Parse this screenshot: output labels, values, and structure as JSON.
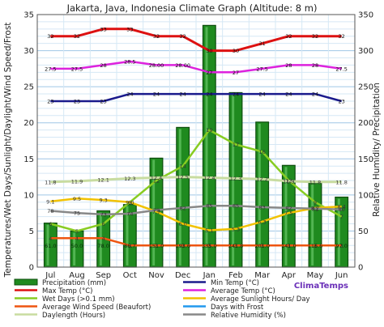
{
  "chart_data": {
    "type": "bar",
    "title": "Jakarta, Java, Indonesia Climate Graph (Altitude: 8 m)",
    "ylabel_left": "Temperatures/Wet Days/Sunlight/Daylight/Wind Speed/Frost",
    "ylabel_right": "Relative Humidity/ Precipitation",
    "categories": [
      "Jul",
      "Aug",
      "Sep",
      "Oct",
      "Nov",
      "Dec",
      "Jan",
      "Feb",
      "Mar",
      "Apr",
      "May",
      "Jun"
    ],
    "ylim_left": [
      0,
      35
    ],
    "ylim_right": [
      0,
      350
    ],
    "left_ticks": [
      "0",
      "5",
      "10",
      "15",
      "20",
      "25",
      "30",
      "35"
    ],
    "right_ticks": [
      "0",
      "50",
      "100",
      "150",
      "200",
      "250",
      "300",
      "350"
    ],
    "grid": true,
    "precipitation": {
      "name": "Precipitation (mm)",
      "color": "#1f8a1f",
      "values": [
        61.0,
        50.0,
        78.0,
        86.7,
        151.0,
        193.6,
        335.0,
        241.8,
        201.0,
        141.0,
        116.6,
        97.0
      ],
      "labels": [
        "61.0",
        "50.0",
        "78.0",
        "86.7",
        "151.0",
        "193.6",
        "335.0",
        "241.8",
        "201.0",
        "141.0",
        "116.6",
        "97.0"
      ]
    },
    "lines": [
      {
        "key": "max",
        "name": "Max Temp (°C)",
        "color": "#dd1111",
        "width": 3,
        "values": [
          32,
          32,
          33,
          33,
          32,
          32,
          30,
          30,
          31,
          32,
          32,
          32
        ],
        "labels": [
          "32",
          "32",
          "33",
          "33",
          "32",
          "32",
          "30",
          "30",
          "31",
          "32",
          "32",
          "32"
        ]
      },
      {
        "key": "avg",
        "name": "Average Temp (°C)",
        "color": "#dd22dd",
        "width": 2.5,
        "values": [
          27.5,
          27.5,
          28,
          28.5,
          28,
          28,
          27,
          27,
          27.5,
          28,
          28,
          27.5
        ],
        "labels": [
          "27.5",
          "27.5",
          "28",
          "28.5",
          "28.00",
          "28.00",
          "27",
          "27",
          "27.5",
          "28",
          "28",
          "27.5"
        ]
      },
      {
        "key": "min",
        "name": "Min Temp (°C)",
        "color": "#1a1a8c",
        "width": 2.5,
        "values": [
          23,
          23,
          23,
          24,
          24,
          24,
          24,
          24,
          24,
          24,
          24,
          23
        ],
        "labels": [
          "23",
          "23",
          "23",
          "24",
          "24",
          "24",
          "24",
          "24",
          "24",
          "24",
          "24",
          "23"
        ]
      },
      {
        "key": "wet",
        "name": "Wet Days (>0.1 mm)",
        "color": "#88cc22",
        "width": 2.5,
        "values": [
          6,
          5,
          6,
          9,
          12,
          14,
          19,
          17,
          16,
          12,
          9,
          7
        ],
        "labels": [
          "6",
          "5",
          "6",
          "9",
          "12",
          "14",
          "19",
          "17",
          "16",
          "12",
          "9",
          "7"
        ]
      },
      {
        "key": "sun",
        "name": "Average Sunlight Hours/ Day",
        "color": "#f2c200",
        "width": 2.5,
        "values": [
          9.1,
          9.5,
          9.3,
          9.0,
          7.7,
          6.0,
          5.1,
          5.3,
          6.3,
          7.5,
          8.2,
          8.4
        ],
        "labels": [
          "9.1",
          "9.5",
          "9.3",
          "9.0",
          "7.7",
          "6.0",
          "5.1",
          "5.3",
          "6.3",
          "7.5",
          "8.2",
          "8.4"
        ]
      },
      {
        "key": "day",
        "name": "Daylength (Hours)",
        "color": "#c8dca0",
        "width": 3,
        "values": [
          11.8,
          11.9,
          12.1,
          12.3,
          12.4,
          12.5,
          12.4,
          12.3,
          12.2,
          11.9,
          11.8,
          11.8
        ],
        "labels": [
          "11.8",
          "11.9",
          "12.1",
          "12.3",
          "12.4",
          "12.5",
          "12.4",
          "12.3",
          "12.2",
          "11.9",
          "11.8",
          "11.8"
        ]
      },
      {
        "key": "hum",
        "name": "Relative Humidity (%)",
        "color": "#888888",
        "width": 2.5,
        "values": [
          78,
          75,
          73,
          74,
          79,
          82,
          85,
          85,
          83,
          82,
          81,
          80
        ],
        "labels": [
          "78",
          "75",
          "73",
          "74",
          "79",
          "82",
          "85",
          "85",
          "83",
          "82",
          "81",
          "80"
        ],
        "axis": "right"
      },
      {
        "key": "wind",
        "name": "Average Wind Speed (Beaufort)",
        "color": "#ee5511",
        "width": 2.5,
        "values": [
          4,
          4,
          4,
          3,
          3,
          3,
          3,
          3,
          3,
          3,
          3,
          3
        ],
        "labels": [
          "4",
          "4",
          "4",
          "3",
          "3",
          "3",
          "3",
          "3",
          "3",
          "3",
          "3",
          "3"
        ]
      }
    ],
    "legend": {
      "placement": "bottom",
      "items": [
        {
          "label": "Precipitation (mm)",
          "color": "#1f8a1f",
          "kind": "bar"
        },
        {
          "label": "Min Temp (°C)",
          "color": "#1a1a8c",
          "kind": "line"
        },
        {
          "label": "Max Temp (°C)",
          "color": "#dd1111",
          "kind": "line"
        },
        {
          "label": "Average Temp (°C)",
          "color": "#dd22dd",
          "kind": "line"
        },
        {
          "label": "Wet Days (>0.1 mm)",
          "color": "#88cc22",
          "kind": "line"
        },
        {
          "label": "Average Sunlight Hours/ Day",
          "color": "#f2c200",
          "kind": "line"
        },
        {
          "label": "Average Wind Speed (Beaufort)",
          "color": "#ee5511",
          "kind": "line"
        },
        {
          "label": "Days with Frost",
          "color": "#2299ee",
          "kind": "line"
        },
        {
          "label": "Daylength (Hours)",
          "color": "#c8dca0",
          "kind": "line"
        },
        {
          "label": "Relative Humidity (%)",
          "color": "#888888",
          "kind": "line"
        }
      ]
    },
    "watermark": "ClimaTemps"
  }
}
